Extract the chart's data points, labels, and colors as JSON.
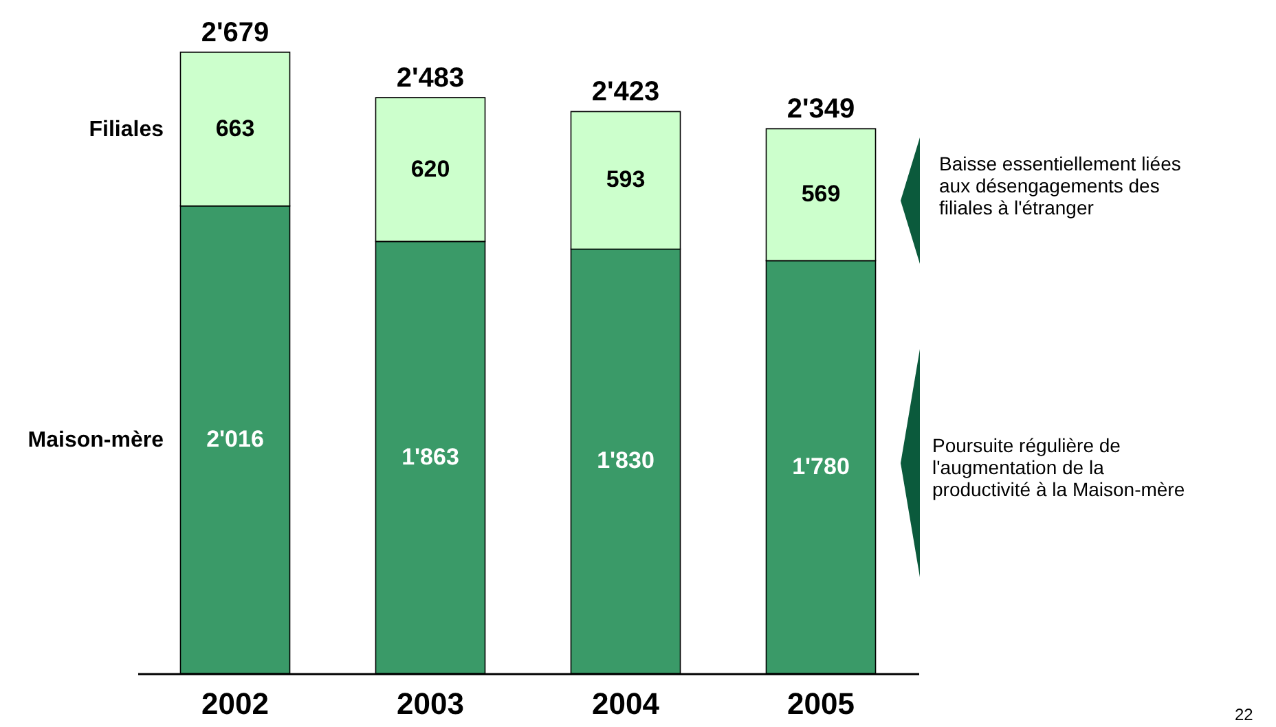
{
  "chart_data": {
    "type": "bar",
    "stacked": true,
    "categories": [
      "2002",
      "2003",
      "2004",
      "2005"
    ],
    "series": [
      {
        "name": "Maison-mère",
        "color": "#3a9a68",
        "values": [
          2016,
          1863,
          1830,
          1780
        ],
        "value_labels": [
          "2'016",
          "1'863",
          "1'830",
          "1'780"
        ]
      },
      {
        "name": "Filiales",
        "color": "#ccffcc",
        "values": [
          663,
          620,
          593,
          569
        ],
        "value_labels": [
          "663",
          "620",
          "593",
          "569"
        ]
      }
    ],
    "totals": [
      "2'679",
      "2'483",
      "2'423",
      "2'349"
    ],
    "annotations": [
      "Baisse essentiellement liées\naux désengagements des\nfiliales à l'étranger",
      "Poursuite régulière de\nl'augmentation de la\nproductivité à la Maison-mère",
      "22"
    ]
  }
}
